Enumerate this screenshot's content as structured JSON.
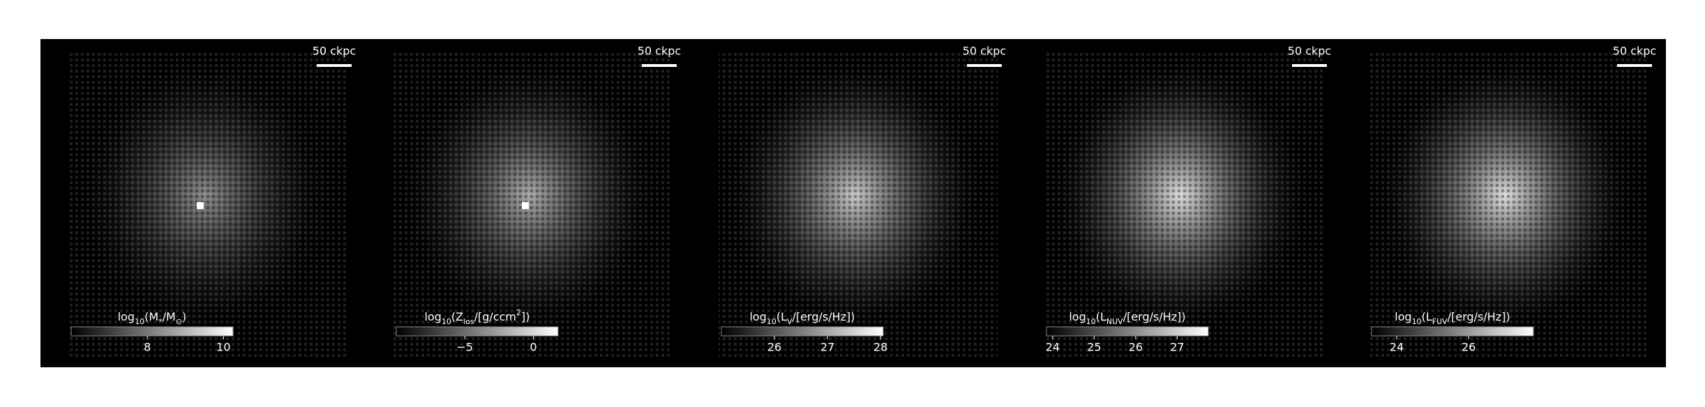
{
  "chart_data": [
    {
      "type": "image",
      "scale_bar": "50 ckpc",
      "colorbar": {
        "label": [
          {
            "text": "log"
          },
          {
            "text": "10",
            "sub": true
          },
          {
            "text": "(M"
          },
          {
            "text": "*",
            "sub": true
          },
          {
            "text": "/M"
          },
          {
            "text": "⊙",
            "sub": true
          },
          {
            "text": ")"
          }
        ],
        "clim": [
          6,
          10.25
        ],
        "ticks": [
          8,
          10
        ]
      }
    },
    {
      "type": "image",
      "scale_bar": "50 ckpc",
      "colorbar": {
        "label": [
          {
            "text": "log"
          },
          {
            "text": "10",
            "sub": true
          },
          {
            "text": "(Z"
          },
          {
            "text": "los",
            "sub": true
          },
          {
            "text": "/[g/ccm"
          },
          {
            "text": "2",
            "sup": true
          },
          {
            "text": "])"
          }
        ],
        "clim": [
          -10,
          1.8
        ],
        "ticks": [
          {
            "value": -5,
            "label": "−5"
          },
          0
        ]
      }
    },
    {
      "type": "image",
      "scale_bar": "50 ckpc",
      "colorbar": {
        "label": [
          {
            "text": "log"
          },
          {
            "text": "10",
            "sub": true
          },
          {
            "text": "(L"
          },
          {
            "text": "V",
            "sub": true
          },
          {
            "text": "/[erg/s/Hz])"
          }
        ],
        "clim": [
          25,
          28.05
        ],
        "ticks": [
          26,
          27,
          28
        ]
      }
    },
    {
      "type": "image",
      "scale_bar": "50 ckpc",
      "colorbar": {
        "label": [
          {
            "text": "log"
          },
          {
            "text": "10",
            "sub": true
          },
          {
            "text": "(L"
          },
          {
            "text": "NUV",
            "sub": true
          },
          {
            "text": "/[erg/s/Hz])"
          }
        ],
        "clim": [
          23.85,
          27.75
        ],
        "ticks": [
          24,
          25,
          26,
          27
        ]
      }
    },
    {
      "type": "image",
      "scale_bar": "50 ckpc",
      "colorbar": {
        "label": [
          {
            "text": "log"
          },
          {
            "text": "10",
            "sub": true
          },
          {
            "text": "(L"
          },
          {
            "text": "FUV",
            "sub": true
          },
          {
            "text": "/[erg/s/Hz])"
          }
        ],
        "clim": [
          23.3,
          27.8
        ],
        "ticks": [
          24,
          26
        ]
      }
    }
  ]
}
